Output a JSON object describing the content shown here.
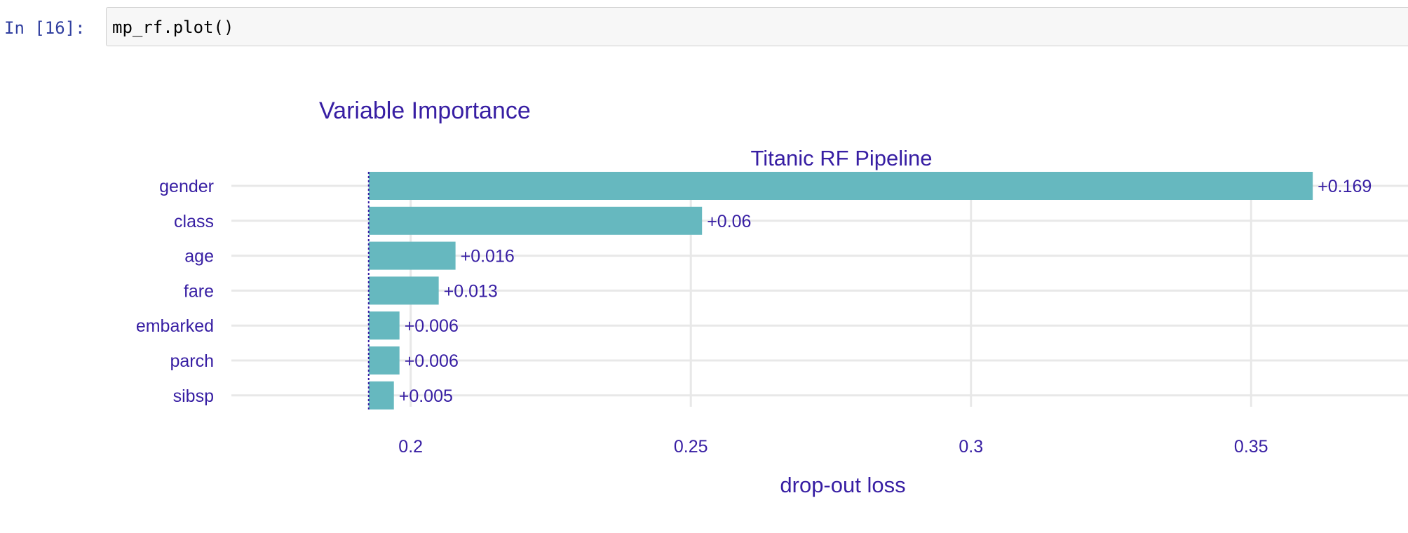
{
  "cell": {
    "prompt": "In [16]:",
    "code": "mp_rf.plot()"
  },
  "colors": {
    "bar": "#66b8bf",
    "text": "#371ea3",
    "grid": "#e8e8e8",
    "baseline": "#371ea3"
  },
  "chart_data": {
    "type": "bar",
    "orientation": "horizontal",
    "title": "Variable Importance",
    "subtitle": "Titanic RF Pipeline",
    "xlabel": "drop-out loss",
    "ylabel": "",
    "xlim": [
      0.168,
      0.378
    ],
    "xticks": [
      0.2,
      0.25,
      0.3,
      0.35
    ],
    "xtick_labels": [
      "0.2",
      "0.25",
      "0.3",
      "0.35"
    ],
    "baseline": 0.1925,
    "categories": [
      "gender",
      "class",
      "age",
      "fare",
      "embarked",
      "parch",
      "sibsp"
    ],
    "values": [
      0.361,
      0.252,
      0.208,
      0.205,
      0.198,
      0.198,
      0.197
    ],
    "labels": [
      "+0.169",
      "+0.06",
      "+0.016",
      "+0.013",
      "+0.006",
      "+0.006",
      "+0.005"
    ],
    "grid": true,
    "legend": "none"
  }
}
